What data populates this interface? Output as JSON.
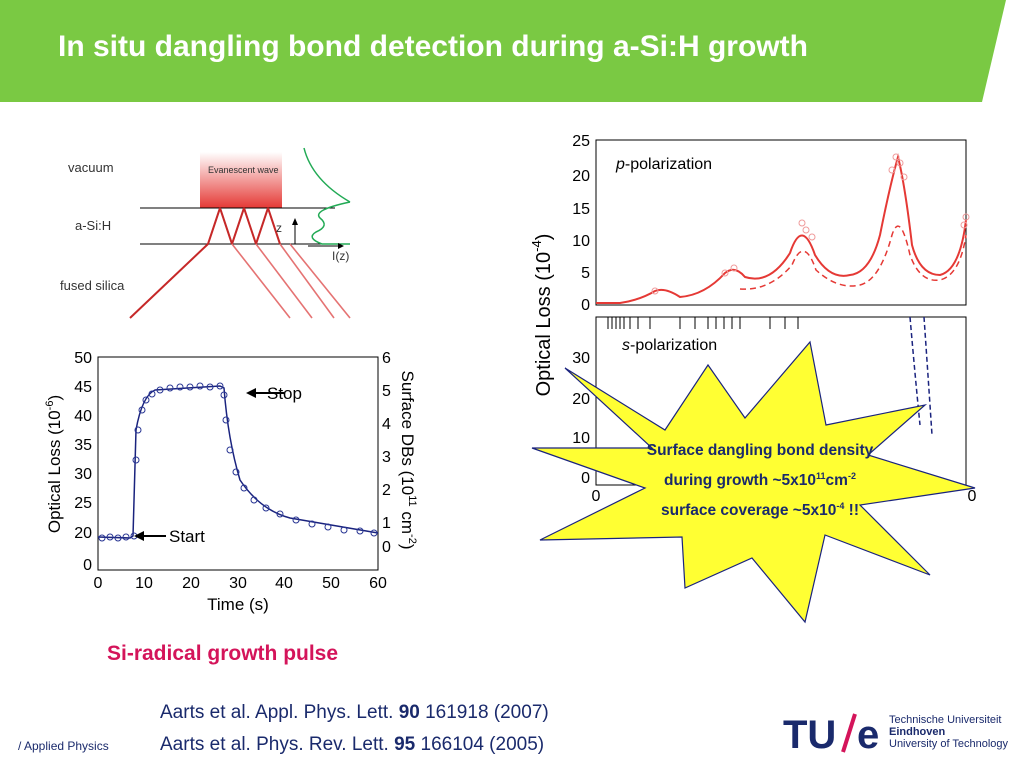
{
  "header": {
    "title": "In situ dangling bond detection during a-Si:H growth",
    "color": "#7ac943"
  },
  "schematic": {
    "label_vacuum": "vacuum",
    "label_asih": "a-Si:H",
    "label_silica": "fused silica",
    "label_evanescent": "Evanescent wave",
    "label_z": "z",
    "label_iz": "I(z)"
  },
  "left_chart": {
    "ylabel": "Optical Loss (10",
    "ylabel_exp": "-6",
    "ylabel_end": ")",
    "y2label": "Surface DBs (10",
    "y2label_exp": "11",
    "y2label_mid": " cm",
    "y2label_exp2": "-2",
    "y2label_end": ")",
    "xlabel": "Time (s)",
    "xticks": [
      "0",
      "10",
      "20",
      "30",
      "40",
      "50",
      "60"
    ],
    "yticks": [
      "50",
      "45",
      "40",
      "35",
      "30",
      "25",
      "20",
      "0"
    ],
    "y2ticks": [
      "6",
      "5",
      "4",
      "3",
      "2",
      "1",
      "0"
    ],
    "annot_stop": "Stop",
    "annot_start": "Start"
  },
  "right_chart": {
    "ylabel": "Optical Loss (10",
    "ylabel_exp": "-4",
    "ylabel_end": ")",
    "top_label_italic": "p",
    "top_label": "-polarization",
    "bottom_label_italic": "s",
    "bottom_label": "-polarization",
    "top_yticks": [
      "25",
      "20",
      "15",
      "10",
      "5",
      "0"
    ],
    "bottom_yticks": [
      "30",
      "20",
      "10",
      "0"
    ],
    "xtick_first": "0",
    "xtick_last": "0"
  },
  "star": {
    "line1": "Surface dangling bond density",
    "line2a": "during growth ~5x10",
    "line2_exp": "11",
    "line2b": "cm",
    "line2_exp2": "-2",
    "line3a": "surface coverage ~5x10",
    "line3_exp": "-4",
    "line3b": " !!",
    "fill": "#ffff33"
  },
  "caption": "Si-radical growth pulse",
  "refs": {
    "ref1_a": "Aarts et al. Appl. Phys. Lett. ",
    "ref1_b": "90",
    "ref1_c": " 161918 (2007)",
    "ref2_a": "Aarts et al. Phys. Rev. Lett. ",
    "ref2_b": "95",
    "ref2_c": " 166104 (2005)"
  },
  "footer": {
    "dept": "/ Applied Physics",
    "logo_mark": "TU/e",
    "logo_line1": "Technische Universiteit",
    "logo_line2": "Eindhoven",
    "logo_line3": "University of Technology"
  }
}
